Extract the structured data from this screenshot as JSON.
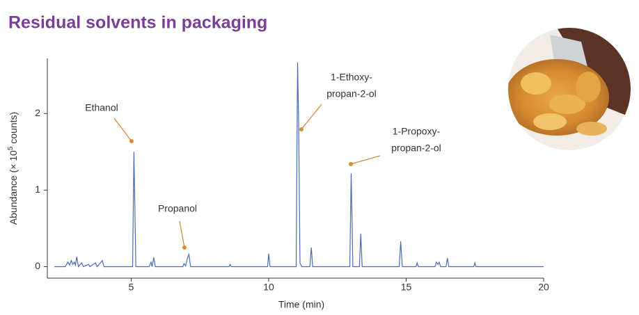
{
  "chart_data": {
    "type": "line",
    "title": "Residual solvents in packaging",
    "x_label": "Time (min)",
    "y_label": {
      "before": "Abundance (× 10",
      "sup": "5",
      "after": " counts)"
    },
    "xlim": [
      1.95,
      20
    ],
    "ylim": [
      -0.15,
      2.72
    ],
    "xticks": [
      5,
      10,
      15,
      20
    ],
    "yticks": [
      0,
      1,
      2
    ],
    "color": "#4a6bb5",
    "x": [
      2.2,
      2.6,
      2.7,
      2.76,
      2.82,
      2.88,
      2.93,
      2.97,
      3.02,
      3.08,
      3.2,
      3.26,
      3.45,
      3.5,
      3.7,
      3.76,
      3.95,
      4.01,
      5.05,
      5.1,
      5.17,
      5.65,
      5.72,
      5.76,
      5.82,
      5.88,
      6.88,
      6.92,
      6.98,
      7.05,
      7.1,
      7.16,
      8.56,
      8.6,
      8.64,
      9.96,
      10.0,
      10.05,
      11.0,
      11.05,
      11.09,
      11.14,
      11.2,
      11.5,
      11.55,
      11.6,
      12.95,
      13.0,
      13.06,
      13.3,
      13.35,
      13.4,
      14.75,
      14.8,
      14.86,
      15.36,
      15.4,
      15.44,
      16.05,
      16.1,
      16.16,
      16.2,
      16.25,
      16.45,
      16.5,
      16.55,
      17.46,
      17.5,
      17.54,
      20.0
    ],
    "values": [
      0,
      0,
      0.06,
      0.02,
      0.08,
      0.03,
      0.06,
      0.02,
      0.13,
      0,
      0.05,
      0,
      0.03,
      0,
      0.05,
      0,
      0.08,
      0,
      0,
      1.5,
      0,
      0,
      0.06,
      0,
      0.12,
      0,
      0,
      0.04,
      0.01,
      0.12,
      0.16,
      0,
      0,
      0.03,
      0,
      0,
      0.17,
      0,
      0,
      2.67,
      1.9,
      0.05,
      0,
      0,
      0.25,
      0,
      0,
      1.22,
      0,
      0,
      0.43,
      0,
      0,
      0.33,
      0,
      0,
      0.05,
      0,
      0,
      0.06,
      0.03,
      0.06,
      0,
      0,
      0.11,
      0,
      0,
      0.05,
      0,
      0
    ],
    "annotations": [
      {
        "text": [
          "Ethanol"
        ]
      },
      {
        "text": [
          "Propanol"
        ]
      },
      {
        "text": [
          "1-Ethoxy-",
          "propan-2-ol"
        ]
      },
      {
        "text": [
          "1-Propoxy-",
          "propan-2-ol"
        ]
      }
    ]
  }
}
